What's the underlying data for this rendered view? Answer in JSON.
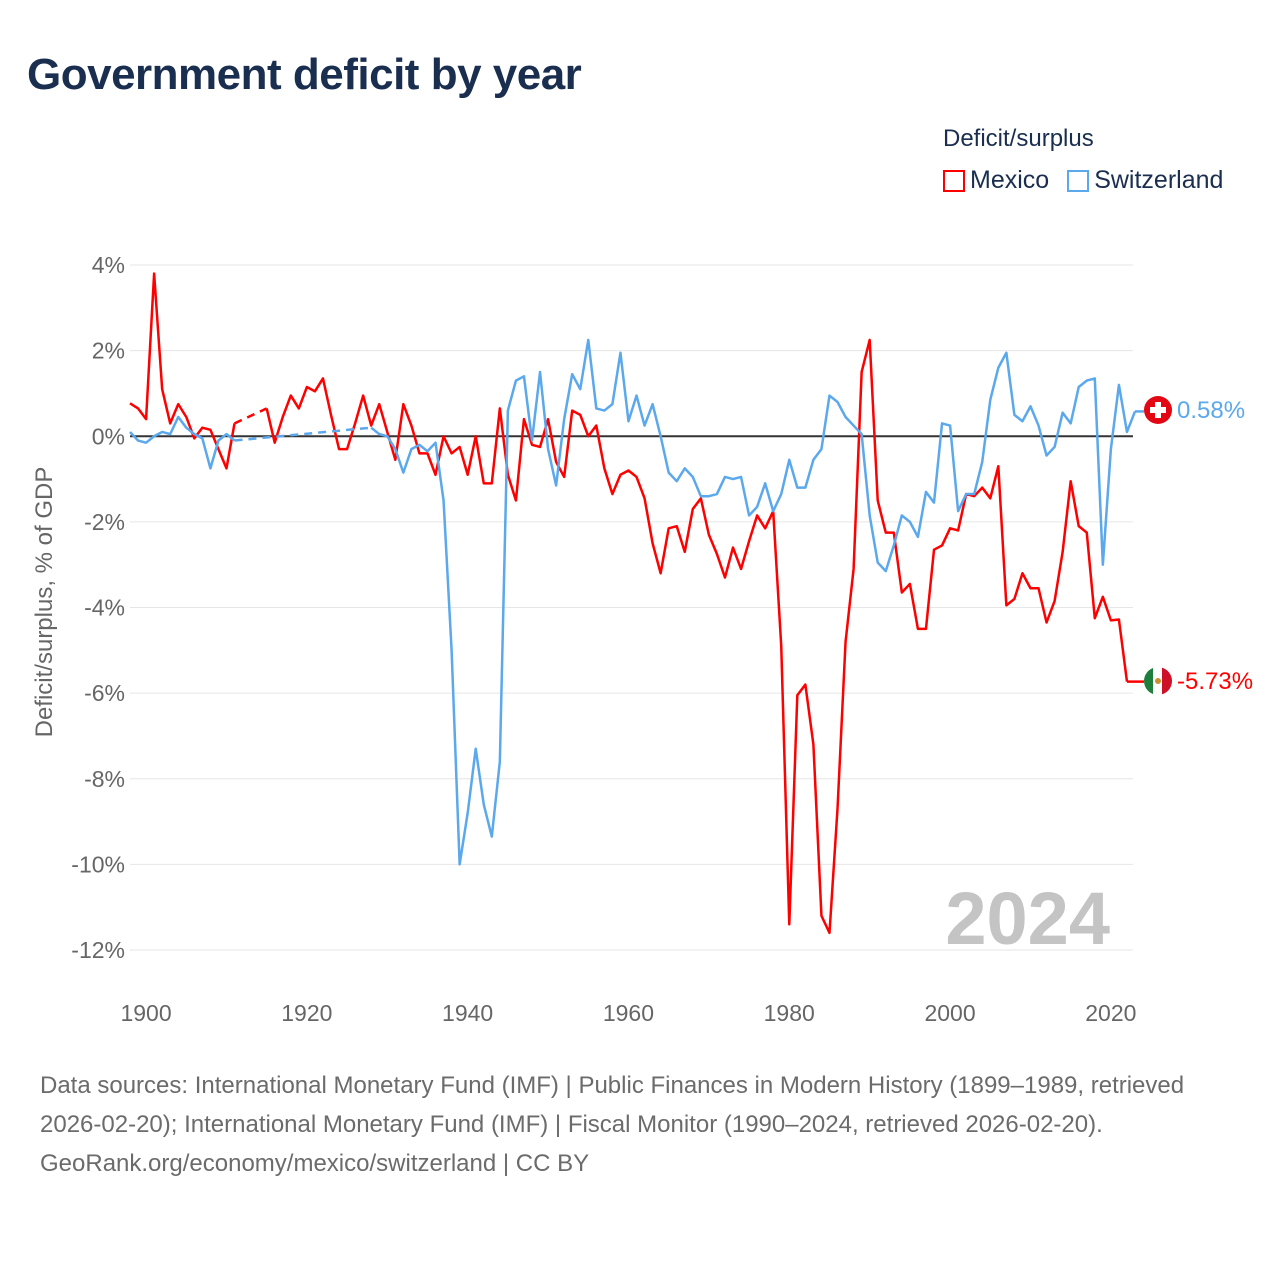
{
  "title": "Government deficit by year",
  "legend": {
    "title": "Deficit/surplus",
    "items": [
      {
        "label": "Mexico",
        "color": "#ff0000"
      },
      {
        "label": "Switzerland",
        "color": "#5ba8ec"
      }
    ]
  },
  "year_watermark": "2024",
  "end_labels": {
    "switzerland": "0.58%",
    "mexico": "-5.73%"
  },
  "footer": {
    "sources": "Data sources: International Monetary Fund (IMF) | Public Finances in Modern History (1899–1989, retrieved 2026-02-20); International Monetary Fund (IMF) | Fiscal Monitor (1990–2024, retrieved 2026-02-20).",
    "credit": "GeoRank.org/economy/mexico/switzerland | CC BY"
  },
  "chart_data": {
    "type": "line",
    "title": "Government deficit by year",
    "xlabel": "",
    "ylabel": "Deficit/surplus, % of GDP",
    "xlim": [
      1899,
      2024
    ],
    "ylim": [
      -12,
      4
    ],
    "x_ticks": [
      "1900",
      "1920",
      "1940",
      "1960",
      "1980",
      "2000",
      "2020"
    ],
    "y_ticks": [
      "4%",
      "2%",
      "0%",
      "-2%",
      "-4%",
      "-6%",
      "-8%",
      "-10%",
      "-12%"
    ],
    "grid": true,
    "legend_position": "top-right",
    "x_start": 1899,
    "series": [
      {
        "name": "Mexico",
        "color": "#ff0000",
        "values": [
          0.77,
          0.65,
          0.4,
          3.8,
          1.1,
          0.3,
          0.75,
          0.45,
          -0.05,
          0.2,
          0.15,
          -0.3,
          -0.75,
          0.3,
          null,
          null,
          null,
          0.65,
          -0.15,
          0.45,
          0.95,
          0.65,
          1.15,
          1.05,
          1.35,
          0.5,
          -0.3,
          -0.3,
          0.3,
          0.95,
          0.25,
          0.75,
          0.1,
          -0.55,
          0.75,
          0.25,
          -0.4,
          -0.4,
          -0.9,
          0.0,
          -0.4,
          -0.25,
          -0.9,
          0.0,
          -1.1,
          -1.1,
          0.65,
          -0.9,
          -1.5,
          0.4,
          -0.2,
          -0.25,
          0.4,
          -0.6,
          -0.95,
          0.6,
          0.5,
          0.0,
          0.25,
          -0.75,
          -1.35,
          -0.9,
          -0.8,
          -0.95,
          -1.45,
          -2.5,
          -3.2,
          -2.15,
          -2.1,
          -2.7,
          -1.7,
          -1.45,
          -2.3,
          -2.75,
          -3.3,
          -2.6,
          -3.1,
          -2.45,
          -1.85,
          -2.15,
          -1.75,
          -4.9,
          -11.4,
          -6.05,
          -5.8,
          -7.2,
          -11.2,
          -11.6,
          -8.7,
          -4.8,
          -3.1,
          1.5,
          2.25,
          -1.5,
          -2.25,
          -2.25,
          -3.65,
          -3.45,
          -4.5,
          -4.5,
          -2.65,
          -2.55,
          -2.15,
          -2.2,
          -1.35,
          -1.4,
          -1.2,
          -1.45,
          -0.7,
          -3.95,
          -3.8,
          -3.2,
          -3.55,
          -3.55,
          -4.35,
          -3.85,
          -2.7,
          -1.05,
          -2.1,
          -2.25,
          -4.25,
          -3.75,
          -4.3,
          -4.28,
          -5.73
        ]
      },
      {
        "name": "Switzerland",
        "color": "#5ba8ec",
        "values": [
          0.1,
          -0.1,
          -0.15,
          0.0,
          0.1,
          0.05,
          0.45,
          0.2,
          0.05,
          -0.05,
          -0.75,
          -0.1,
          0.05,
          -0.1,
          null,
          null,
          null,
          null,
          null,
          null,
          null,
          null,
          null,
          null,
          null,
          null,
          null,
          null,
          null,
          null,
          0.2,
          0.05,
          0.0,
          -0.3,
          -0.85,
          -0.3,
          -0.2,
          -0.35,
          -0.15,
          -1.5,
          -5.0,
          -10.0,
          -8.8,
          -7.3,
          -8.6,
          -9.35,
          -7.6,
          0.6,
          1.3,
          1.4,
          -0.1,
          1.5,
          -0.3,
          -1.15,
          0.4,
          1.45,
          1.1,
          2.25,
          0.65,
          0.6,
          0.75,
          1.95,
          0.35,
          0.95,
          0.25,
          0.75,
          0.0,
          -0.85,
          -1.05,
          -0.75,
          -0.95,
          -1.4,
          -1.4,
          -1.35,
          -0.95,
          -1.0,
          -0.95,
          -1.85,
          -1.65,
          -1.1,
          -1.75,
          -1.35,
          -0.55,
          -1.2,
          -1.2,
          -0.55,
          -0.3,
          0.95,
          0.8,
          0.45,
          0.25,
          0.05,
          -1.85,
          -2.95,
          -3.15,
          -2.55,
          -1.85,
          -2.0,
          -2.35,
          -1.3,
          -1.55,
          0.3,
          0.25,
          -1.75,
          -1.35,
          -1.35,
          -0.6,
          0.85,
          1.6,
          1.95,
          0.5,
          0.35,
          0.7,
          0.25,
          -0.45,
          -0.25,
          0.55,
          0.3,
          1.15,
          1.3,
          1.35,
          -3.0,
          -0.3,
          1.2,
          0.1,
          0.58
        ]
      }
    ]
  }
}
